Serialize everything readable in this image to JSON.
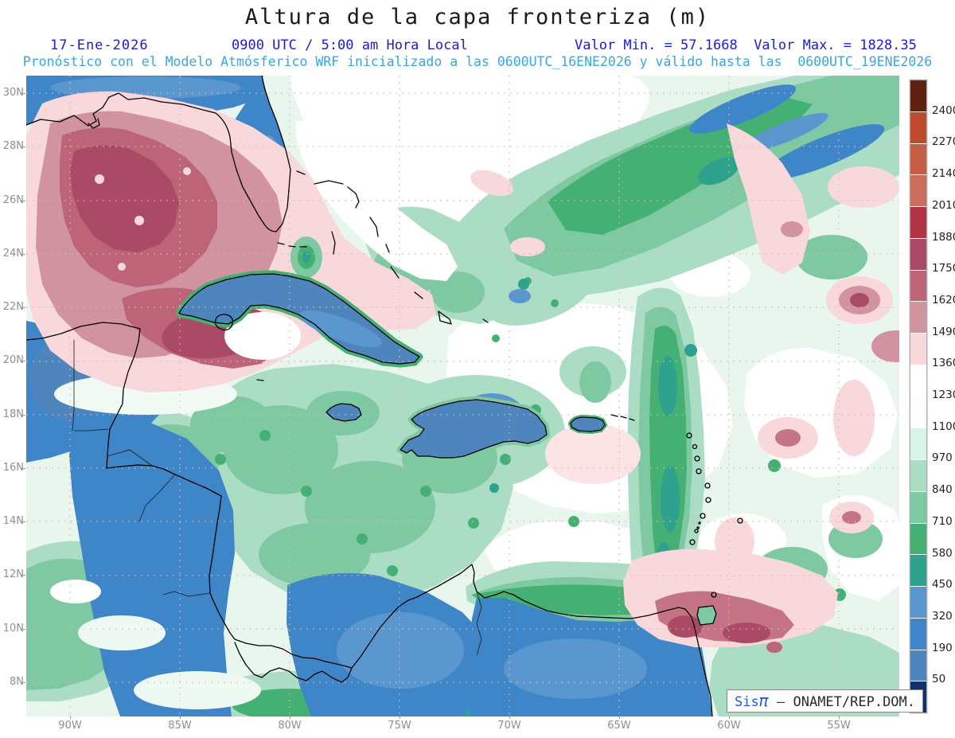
{
  "header": {
    "title": "Altura de la capa fronteriza (m)",
    "date": "17-Ene-2026",
    "time": "0900 UTC / 5:00 am Hora Local",
    "min_label": "Valor Min. = 57.1668",
    "max_label": "Valor Max. = 1828.35",
    "model_line": "Pronóstico con el Modelo Atmósferico WRF inicializado a las 0600UTC_16ENE2026 y válido hasta las  0600UTC_19ENE2026"
  },
  "axes": {
    "lat": [
      "30N",
      "28N",
      "26N",
      "24N",
      "22N",
      "20N",
      "18N",
      "16N",
      "14N",
      "12N",
      "10N",
      "8N"
    ],
    "lon": [
      "90W",
      "85W",
      "80W",
      "75W",
      "70W",
      "65W",
      "60W",
      "55W"
    ]
  },
  "colorbar": {
    "labels": [
      "2400",
      "2270",
      "2140",
      "2010",
      "1880",
      "1750",
      "1620",
      "1490",
      "1360",
      "1230",
      "1100",
      "970",
      "840",
      "710",
      "580",
      "450",
      "320",
      "190",
      "50"
    ],
    "colors": [
      "#5e2310",
      "#c04a2c",
      "#c55e44",
      "#c96e5a",
      "#b03343",
      "#aa4a67",
      "#bd6478",
      "#d1939f",
      "#f9d8dc",
      "#ffffff",
      "#fcfdfc",
      "#d9f3e7",
      "#abdcc4",
      "#7fc9a2",
      "#45b073",
      "#2fa28d",
      "#5b97cf",
      "#3f86c9",
      "#4f85bd",
      "#14306b"
    ]
  },
  "watermark": {
    "brand_prefix": "Sis",
    "brand_pi": "π",
    "separator": " – ",
    "org": "ONAMET/REP.DOM."
  },
  "chart_data": {
    "type": "heatmap",
    "variable": "Altura de la capa fronteriza (m)",
    "valid": "17-Ene-2026 0900 UTC / 5:00 am Hora Local",
    "model": "WRF inicializado 0600UTC_16ENE2026, válido hasta 0600UTC_19ENE2026",
    "value_min": 57.1668,
    "value_max": 1828.35,
    "levels": [
      50,
      190,
      320,
      450,
      580,
      710,
      840,
      970,
      1100,
      1230,
      1360,
      1490,
      1620,
      1750,
      1880,
      2010,
      2140,
      2270,
      2400
    ],
    "lat_range": [
      "8N",
      "30N"
    ],
    "lon_range": [
      "90W",
      "55W"
    ],
    "source": "Sisπ – ONAMET/REP.DOM."
  }
}
